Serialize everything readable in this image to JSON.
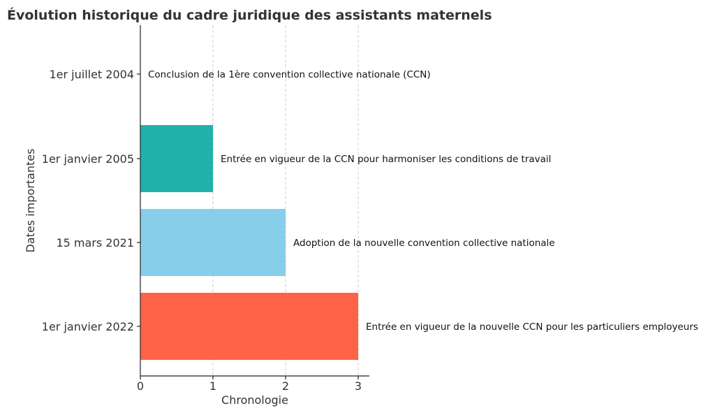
{
  "chart_data": {
    "type": "bar",
    "orientation": "horizontal",
    "title": "Évolution historique du cadre juridique des assistants maternels",
    "xlabel": "Chronologie",
    "ylabel": "Dates importantes",
    "xlim": [
      0,
      3.15
    ],
    "xticks": [
      "0",
      "1",
      "2",
      "3"
    ],
    "grid": "x-dashed",
    "categories": [
      "1er juillet 2004",
      "1er janvier 2005",
      "15 mars 2021",
      "1er janvier 2022"
    ],
    "values": [
      0,
      1,
      2,
      3
    ],
    "colors": [
      "#FFD700",
      "#20B2AA",
      "#87CEEB",
      "#FF6347"
    ],
    "annotations": [
      "Conclusion de la 1ère convention collective nationale (CCN)",
      "Entrée en vigueur de la CCN pour harmoniser les conditions de travail",
      "Adoption de la nouvelle convention collective nationale",
      "Entrée en vigueur de la nouvelle CCN pour les particuliers employeurs"
    ]
  }
}
